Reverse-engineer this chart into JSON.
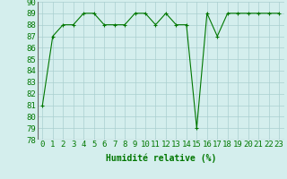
{
  "x": [
    0,
    1,
    2,
    3,
    4,
    5,
    6,
    7,
    8,
    9,
    10,
    11,
    12,
    13,
    14,
    15,
    16,
    17,
    18,
    19,
    20,
    21,
    22,
    23
  ],
  "y": [
    81,
    87,
    88,
    88,
    89,
    89,
    88,
    88,
    88,
    89,
    89,
    88,
    89,
    88,
    88,
    79,
    89,
    87,
    89,
    89,
    89,
    89,
    89,
    89
  ],
  "line_color": "#007700",
  "marker": "+",
  "marker_color": "#007700",
  "bg_color": "#d4eeed",
  "grid_color": "#aacfcf",
  "xlabel": "Humidité relative (%)",
  "xlabel_color": "#007700",
  "xlabel_fontsize": 7,
  "tick_fontsize": 6.5,
  "ylim": [
    78,
    90
  ],
  "xlim": [
    -0.5,
    23.5
  ],
  "yticks": [
    78,
    79,
    80,
    81,
    82,
    83,
    84,
    85,
    86,
    87,
    88,
    89,
    90
  ],
  "xticks": [
    0,
    1,
    2,
    3,
    4,
    5,
    6,
    7,
    8,
    9,
    10,
    11,
    12,
    13,
    14,
    15,
    16,
    17,
    18,
    19,
    20,
    21,
    22,
    23
  ]
}
